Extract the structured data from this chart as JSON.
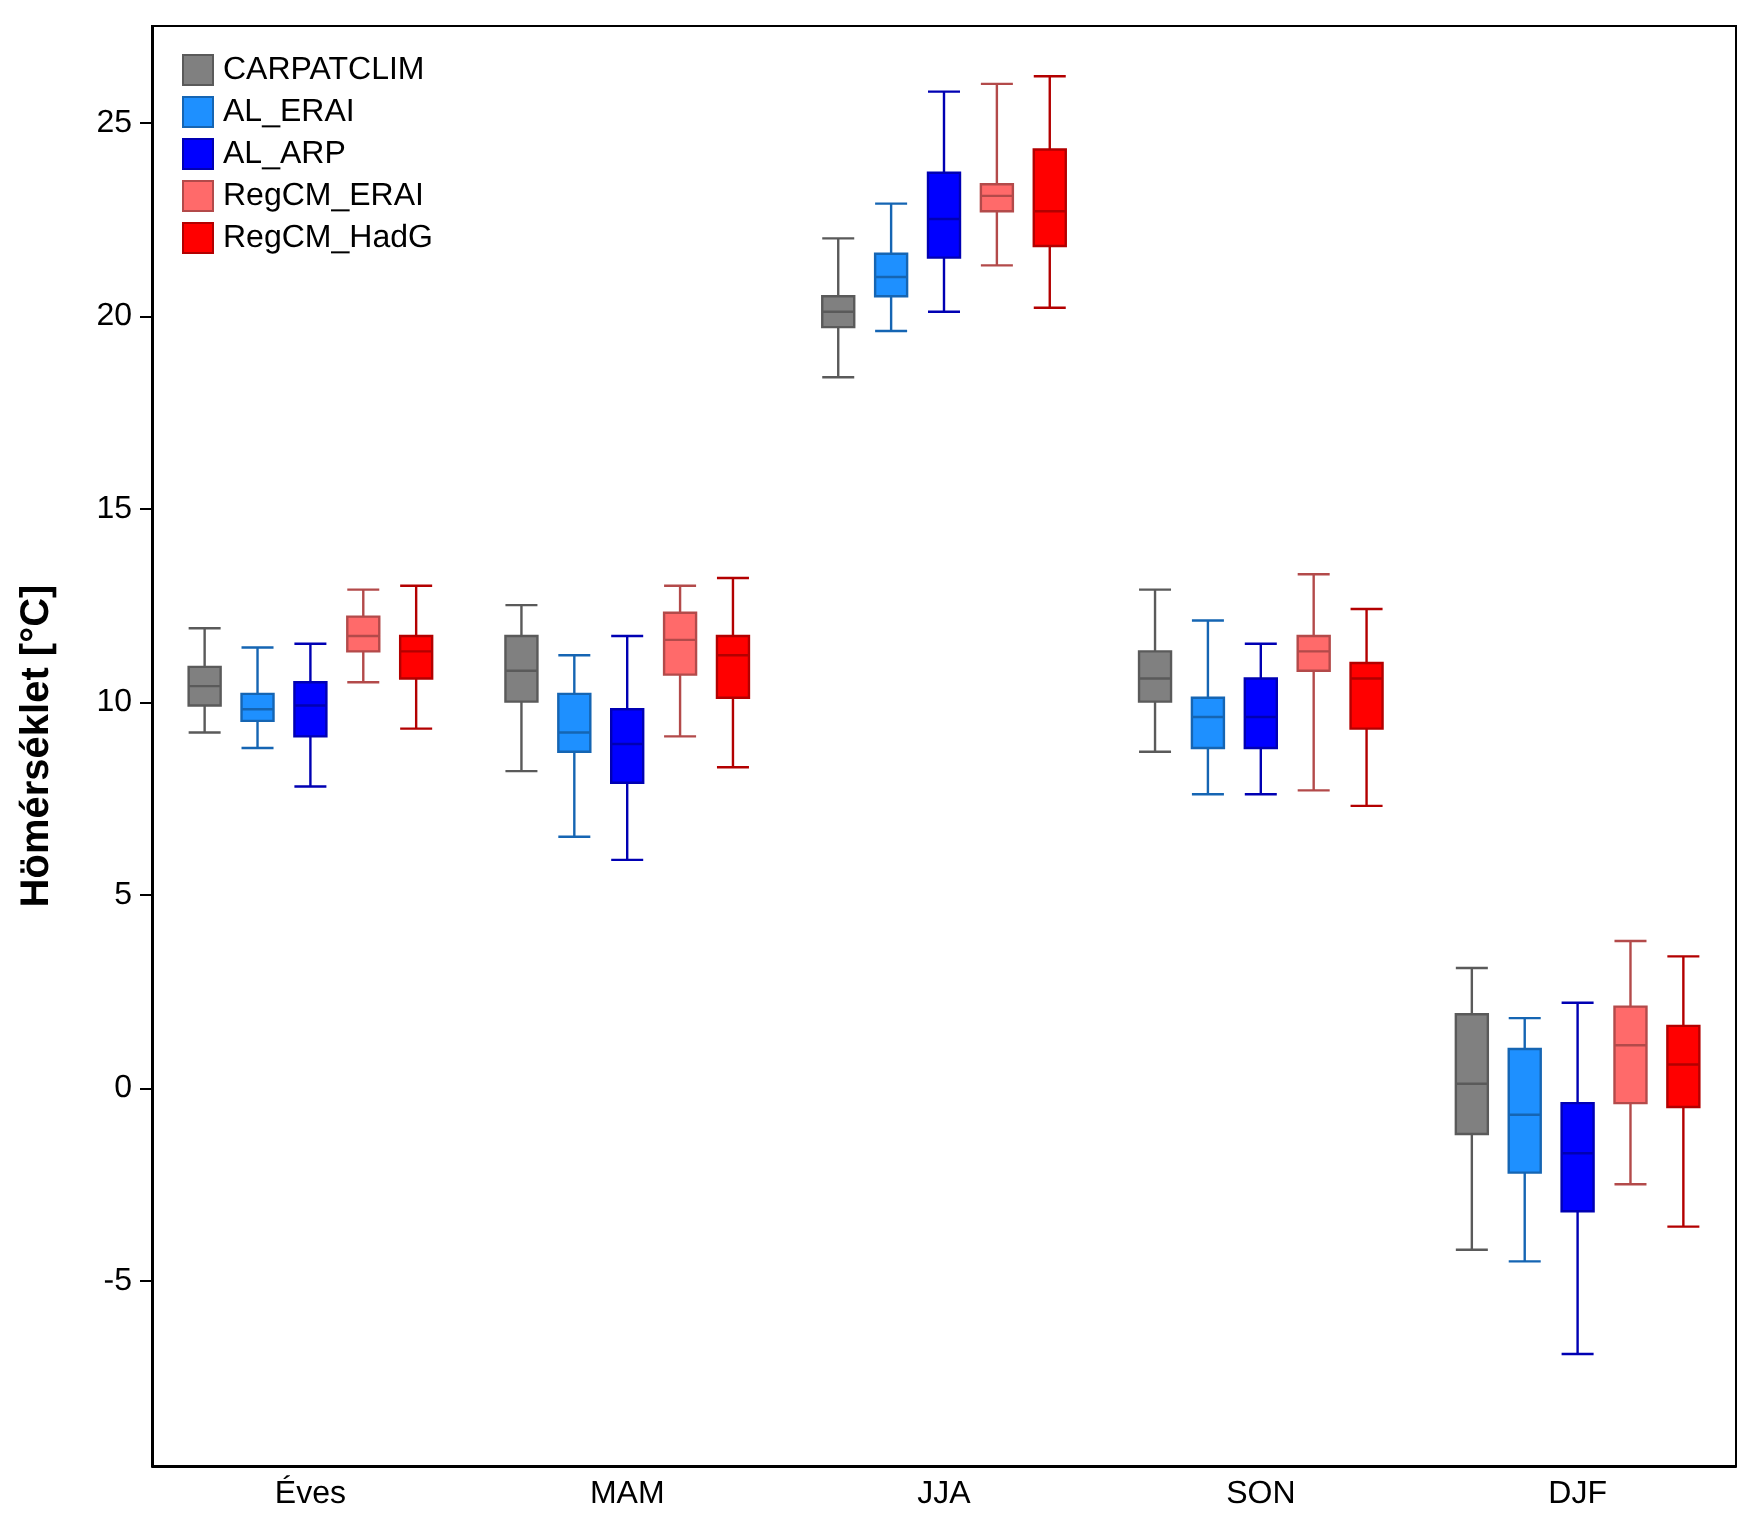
{
  "chart_data": {
    "type": "box",
    "ylabel": "Hömérséklet [°C]",
    "categories": [
      "Éves",
      "MAM",
      "JJA",
      "SON",
      "DJF"
    ],
    "series": [
      {
        "name": "CARPATCLIM",
        "color": "#808080",
        "boxes": [
          {
            "low": 9.2,
            "q1": 9.9,
            "median": 10.4,
            "q3": 10.9,
            "high": 11.9
          },
          {
            "low": 8.2,
            "q1": 10.0,
            "median": 10.8,
            "q3": 11.7,
            "high": 12.5
          },
          {
            "low": 18.4,
            "q1": 19.7,
            "median": 20.1,
            "q3": 20.5,
            "high": 22.0
          },
          {
            "low": 8.7,
            "q1": 10.0,
            "median": 10.6,
            "q3": 11.3,
            "high": 12.9
          },
          {
            "low": -4.2,
            "q1": -1.2,
            "median": 0.1,
            "q3": 1.9,
            "high": 3.1
          }
        ]
      },
      {
        "name": "AL_ERAI",
        "color": "#1e90ff",
        "boxes": [
          {
            "low": 8.8,
            "q1": 9.5,
            "median": 9.8,
            "q3": 10.2,
            "high": 11.4
          },
          {
            "low": 6.5,
            "q1": 8.7,
            "median": 9.2,
            "q3": 10.2,
            "high": 11.2
          },
          {
            "low": 19.6,
            "q1": 20.5,
            "median": 21.0,
            "q3": 21.6,
            "high": 22.9
          },
          {
            "low": 7.6,
            "q1": 8.8,
            "median": 9.6,
            "q3": 10.1,
            "high": 12.1
          },
          {
            "low": -4.5,
            "q1": -2.2,
            "median": -0.7,
            "q3": 1.0,
            "high": 1.8
          }
        ]
      },
      {
        "name": "AL_ARP",
        "color": "#0000ff",
        "boxes": [
          {
            "low": 7.8,
            "q1": 9.1,
            "median": 9.9,
            "q3": 10.5,
            "high": 11.5
          },
          {
            "low": 5.9,
            "q1": 7.9,
            "median": 8.9,
            "q3": 9.8,
            "high": 11.7
          },
          {
            "low": 20.1,
            "q1": 21.5,
            "median": 22.5,
            "q3": 23.7,
            "high": 25.8
          },
          {
            "low": 7.6,
            "q1": 8.8,
            "median": 9.6,
            "q3": 10.6,
            "high": 11.5
          },
          {
            "low": -6.9,
            "q1": -3.2,
            "median": -1.7,
            "q3": -0.4,
            "high": 2.2
          }
        ]
      },
      {
        "name": "RegCM_ERAI",
        "color": "#ff6a6a",
        "boxes": [
          {
            "low": 10.5,
            "q1": 11.3,
            "median": 11.7,
            "q3": 12.2,
            "high": 12.9
          },
          {
            "low": 9.1,
            "q1": 10.7,
            "median": 11.6,
            "q3": 12.3,
            "high": 13.0
          },
          {
            "low": 21.3,
            "q1": 22.7,
            "median": 23.1,
            "q3": 23.4,
            "high": 26.0
          },
          {
            "low": 7.7,
            "q1": 10.8,
            "median": 11.3,
            "q3": 11.7,
            "high": 13.3
          },
          {
            "low": -2.5,
            "q1": -0.4,
            "median": 1.1,
            "q3": 2.1,
            "high": 3.8
          }
        ]
      },
      {
        "name": "RegCM_HadG",
        "color": "#ff0000",
        "boxes": [
          {
            "low": 9.3,
            "q1": 10.6,
            "median": 11.3,
            "q3": 11.7,
            "high": 13.0
          },
          {
            "low": 8.3,
            "q1": 10.1,
            "median": 11.2,
            "q3": 11.7,
            "high": 13.2
          },
          {
            "low": 20.2,
            "q1": 21.8,
            "median": 22.7,
            "q3": 24.3,
            "high": 26.2
          },
          {
            "low": 7.3,
            "q1": 9.3,
            "median": 10.6,
            "q3": 11.0,
            "high": 12.4
          },
          {
            "low": -3.6,
            "q1": -0.5,
            "median": 0.6,
            "q3": 1.6,
            "high": 3.4
          }
        ]
      }
    ],
    "ylim": [
      -9.8,
      27.5
    ],
    "yticks": [
      -5,
      0,
      5,
      10,
      15,
      20,
      25
    ],
    "legend": "top left"
  }
}
